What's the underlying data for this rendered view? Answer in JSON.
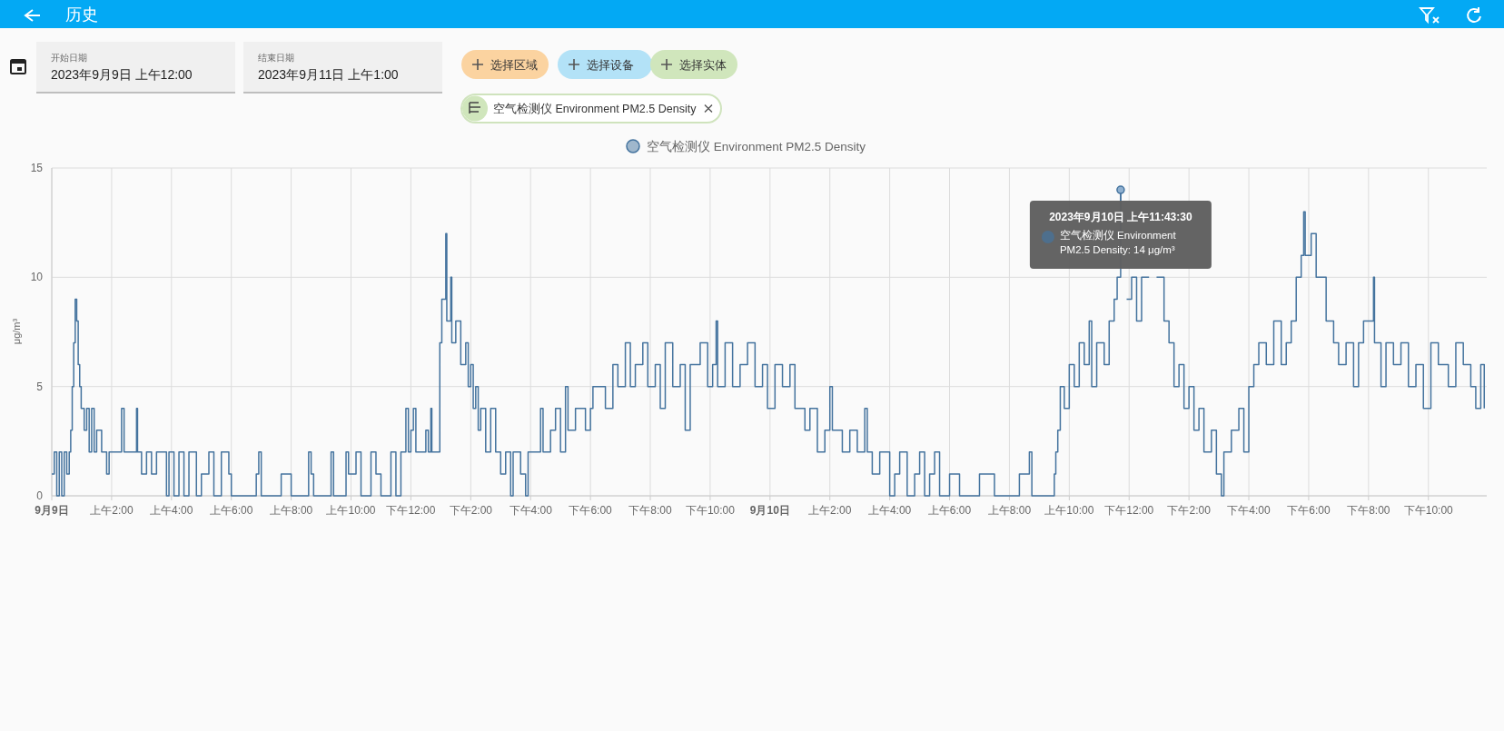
{
  "chart_data": {
    "type": "step",
    "title": "历史",
    "ylabel": "μg/m³",
    "grid": true,
    "legend": "top",
    "line_style": "solid",
    "xlim": [
      "2023-09-09T00:00",
      "2023-09-10T23:57"
    ],
    "ylim": [
      0,
      15
    ],
    "yticks": [
      0,
      5,
      10,
      15
    ],
    "xticks": [
      {
        "value": "2023-09-09T00:00",
        "label": "**9月9日**"
      },
      {
        "value": "2023-09-09T02:00",
        "label": "上午2:00"
      },
      {
        "value": "2023-09-09T04:00",
        "label": "上午4:00"
      },
      {
        "value": "2023-09-09T06:00",
        "label": "上午6:00"
      },
      {
        "value": "2023-09-09T08:00",
        "label": "上午8:00"
      },
      {
        "value": "2023-09-09T10:00",
        "label": "上午10:00"
      },
      {
        "value": "2023-09-09T12:00",
        "label": "下午12:00"
      },
      {
        "value": "2023-09-09T14:00",
        "label": "下午2:00"
      },
      {
        "value": "2023-09-09T16:00",
        "label": "下午4:00"
      },
      {
        "value": "2023-09-09T18:00",
        "label": "下午6:00"
      },
      {
        "value": "2023-09-09T20:00",
        "label": "下午8:00"
      },
      {
        "value": "2023-09-09T22:00",
        "label": "下午10:00"
      },
      {
        "value": "2023-09-10T00:00",
        "label": "**9月10日**"
      },
      {
        "value": "2023-09-10T02:00",
        "label": "上午2:00"
      },
      {
        "value": "2023-09-10T04:00",
        "label": "上午4:00"
      },
      {
        "value": "2023-09-10T06:00",
        "label": "上午6:00"
      },
      {
        "value": "2023-09-10T08:00",
        "label": "上午8:00"
      },
      {
        "value": "2023-09-10T10:00",
        "label": "上午10:00"
      },
      {
        "value": "2023-09-10T12:00",
        "label": "下午12:00"
      },
      {
        "value": "2023-09-10T14:00",
        "label": "下午2:00"
      },
      {
        "value": "2023-09-10T16:00",
        "label": "下午4:00"
      },
      {
        "value": "2023-09-10T18:00",
        "label": "下午6:00"
      },
      {
        "value": "2023-09-10T20:00",
        "label": "下午8:00"
      },
      {
        "value": "2023-09-10T22:00",
        "label": "下午10:00"
      }
    ],
    "annotations": [
      "开始日期",
      "2023年9月9日 上午12:00",
      "结束日期",
      "2023年9月11日 上午1:00",
      "选择区域",
      "选择设备",
      "选择实体",
      "空气检测仪 Environment PM2.5 Density",
      {
        "text": "2023年9月10日 上午11:43:30",
        "x": "2023-09-10T11:43",
        "y": 14
      },
      "空气检测仪 Environment PM2.5 Density: 14 μg/m³"
    ],
    "series": [
      {
        "name": "空气检测仪 Environment PM2.5 Density",
        "color": "#44739e",
        "x": [
          "2023-09-09T00:00",
          "2023-09-09T00:05",
          "2023-09-09T00:10",
          "2023-09-09T00:15",
          "2023-09-09T00:20",
          "2023-09-09T00:25",
          "2023-09-09T00:30",
          "2023-09-09T00:35",
          "2023-09-09T00:38",
          "2023-09-09T00:41",
          "2023-09-09T00:44",
          "2023-09-09T00:47",
          "2023-09-09T00:50",
          "2023-09-09T00:53",
          "2023-09-09T00:56",
          "2023-09-09T00:59",
          "2023-09-09T01:05",
          "2023-09-09T01:10",
          "2023-09-09T01:15",
          "2023-09-09T01:20",
          "2023-09-09T01:25",
          "2023-09-09T01:30",
          "2023-09-09T01:40",
          "2023-09-09T01:50",
          "2023-09-09T01:55",
          "2023-09-09T02:20",
          "2023-09-09T02:25",
          "2023-09-09T02:50",
          "2023-09-09T02:52",
          "2023-09-09T03:00",
          "2023-09-09T03:10",
          "2023-09-09T03:20",
          "2023-09-09T03:30",
          "2023-09-09T03:50",
          "2023-09-09T03:55",
          "2023-09-09T04:05",
          "2023-09-09T04:15",
          "2023-09-09T04:25",
          "2023-09-09T04:35",
          "2023-09-09T04:50",
          "2023-09-09T05:00",
          "2023-09-09T05:15",
          "2023-09-09T05:25",
          "2023-09-09T05:40",
          "2023-09-09T05:55",
          "2023-09-09T06:00",
          "2023-09-09T06:50",
          "2023-09-09T06:55",
          "2023-09-09T07:00",
          "2023-09-09T07:40",
          "2023-09-09T08:00",
          "2023-09-09T08:35",
          "2023-09-09T08:40",
          "2023-09-09T08:45",
          "2023-09-09T09:20",
          "2023-09-09T09:25",
          "2023-09-09T09:50",
          "2023-09-09T09:55",
          "2023-09-09T10:10",
          "2023-09-09T10:20",
          "2023-09-09T10:40",
          "2023-09-09T10:50",
          "2023-09-09T11:00",
          "2023-09-09T11:20",
          "2023-09-09T11:30",
          "2023-09-09T11:40",
          "2023-09-09T11:50",
          "2023-09-09T11:55",
          "2023-09-09T12:00",
          "2023-09-09T12:05",
          "2023-09-09T12:10",
          "2023-09-09T12:30",
          "2023-09-09T12:35",
          "2023-09-09T12:40",
          "2023-09-09T12:42",
          "2023-09-09T12:58",
          "2023-09-09T13:02",
          "2023-09-09T13:10",
          "2023-09-09T13:12",
          "2023-09-09T13:20",
          "2023-09-09T13:22",
          "2023-09-09T13:30",
          "2023-09-09T13:40",
          "2023-09-09T13:50",
          "2023-09-09T13:55",
          "2023-09-09T14:00",
          "2023-09-09T14:05",
          "2023-09-09T14:10",
          "2023-09-09T14:15",
          "2023-09-09T14:20",
          "2023-09-09T14:30",
          "2023-09-09T14:40",
          "2023-09-09T14:50",
          "2023-09-09T15:00",
          "2023-09-09T15:10",
          "2023-09-09T15:20",
          "2023-09-09T15:25",
          "2023-09-09T15:40",
          "2023-09-09T15:50",
          "2023-09-09T15:55",
          "2023-09-09T16:20",
          "2023-09-09T16:25",
          "2023-09-09T16:40",
          "2023-09-09T16:50",
          "2023-09-09T17:00",
          "2023-09-09T17:10",
          "2023-09-09T17:15",
          "2023-09-09T17:30",
          "2023-09-09T17:50",
          "2023-09-09T18:00",
          "2023-09-09T18:05",
          "2023-09-09T18:30",
          "2023-09-09T18:45",
          "2023-09-09T18:55",
          "2023-09-09T19:10",
          "2023-09-09T19:20",
          "2023-09-09T19:30",
          "2023-09-09T19:45",
          "2023-09-09T19:55",
          "2023-09-09T20:10",
          "2023-09-09T20:20",
          "2023-09-09T20:30",
          "2023-09-09T20:45",
          "2023-09-09T21:00",
          "2023-09-09T21:10",
          "2023-09-09T21:20",
          "2023-09-09T21:40",
          "2023-09-09T21:55",
          "2023-09-09T22:05",
          "2023-09-09T22:12",
          "2023-09-09T22:15",
          "2023-09-09T22:30",
          "2023-09-09T22:45",
          "2023-09-09T23:00",
          "2023-09-09T23:15",
          "2023-09-09T23:30",
          "2023-09-09T23:45",
          "2023-09-09T23:55",
          "2023-09-10T00:10",
          "2023-09-10T00:25",
          "2023-09-10T00:40",
          "2023-09-10T00:50",
          "2023-09-10T01:10",
          "2023-09-10T01:20",
          "2023-09-10T01:35",
          "2023-09-10T01:50",
          "2023-09-10T02:00",
          "2023-09-10T02:05",
          "2023-09-10T02:25",
          "2023-09-10T02:40",
          "2023-09-10T02:55",
          "2023-09-10T03:10",
          "2023-09-10T03:15",
          "2023-09-10T03:25",
          "2023-09-10T03:40",
          "2023-09-10T04:00",
          "2023-09-10T04:10",
          "2023-09-10T04:20",
          "2023-09-10T04:35",
          "2023-09-10T04:50",
          "2023-09-10T05:00",
          "2023-09-10T05:10",
          "2023-09-10T05:20",
          "2023-09-10T05:30",
          "2023-09-10T05:40",
          "2023-09-10T06:00",
          "2023-09-10T06:20",
          "2023-09-10T07:00",
          "2023-09-10T07:30",
          "2023-09-10T08:20",
          "2023-09-10T08:40",
          "2023-09-10T08:45",
          "2023-09-10T09:30",
          "2023-09-10T09:33",
          "2023-09-10T09:37",
          "2023-09-10T09:42",
          "2023-09-10T09:50",
          "2023-09-10T10:00",
          "2023-09-10T10:10",
          "2023-09-10T10:20",
          "2023-09-10T10:30",
          "2023-09-10T10:40",
          "2023-09-10T10:45",
          "2023-09-10T10:55",
          "2023-09-10T11:10",
          "2023-09-10T11:20",
          "2023-09-10T11:30",
          "2023-09-10T11:36",
          "2023-09-10T11:43",
          "2023-09-10T11:45",
          "2023-09-10T11:55",
          "2023-09-10T12:05",
          "2023-09-10T12:15",
          "2023-09-10T12:25",
          "2023-09-10T12:40",
          "2023-09-10T12:55",
          "2023-09-10T13:10",
          "2023-09-10T13:20",
          "2023-09-10T13:30",
          "2023-09-10T13:40",
          "2023-09-10T13:50",
          "2023-09-10T14:00",
          "2023-09-10T14:10",
          "2023-09-10T14:20",
          "2023-09-10T14:30",
          "2023-09-10T14:45",
          "2023-09-10T14:55",
          "2023-09-10T15:05",
          "2023-09-10T15:10",
          "2023-09-10T15:25",
          "2023-09-10T15:40",
          "2023-09-10T15:50",
          "2023-09-10T16:00",
          "2023-09-10T16:10",
          "2023-09-10T16:20",
          "2023-09-10T16:35",
          "2023-09-10T16:50",
          "2023-09-10T17:05",
          "2023-09-10T17:15",
          "2023-09-10T17:25",
          "2023-09-10T17:35",
          "2023-09-10T17:45",
          "2023-09-10T17:50",
          "2023-09-10T17:53",
          "2023-09-10T18:05",
          "2023-09-10T18:15",
          "2023-09-10T18:35",
          "2023-09-10T18:50",
          "2023-09-10T19:00",
          "2023-09-10T19:15",
          "2023-09-10T19:30",
          "2023-09-10T19:40",
          "2023-09-10T19:50",
          "2023-09-10T20:10",
          "2023-09-10T20:12",
          "2023-09-10T20:25",
          "2023-09-10T20:35",
          "2023-09-10T20:50",
          "2023-09-10T21:05",
          "2023-09-10T21:20",
          "2023-09-10T21:35",
          "2023-09-10T21:50",
          "2023-09-10T22:05",
          "2023-09-10T22:20",
          "2023-09-10T22:40",
          "2023-09-10T22:55",
          "2023-09-10T23:10",
          "2023-09-10T23:25",
          "2023-09-10T23:35",
          "2023-09-10T23:45",
          "2023-09-10T23:52"
        ],
        "values": [
          1,
          2,
          0,
          2,
          0,
          2,
          1,
          2,
          3,
          5,
          7,
          9,
          8,
          6,
          5,
          4,
          3,
          4,
          2,
          4,
          2,
          3,
          2,
          1,
          2,
          4,
          2,
          4,
          2,
          1,
          2,
          1,
          2,
          0,
          2,
          0,
          2,
          0,
          2,
          0,
          1,
          2,
          0,
          2,
          1,
          0,
          1,
          2,
          0,
          1,
          0,
          2,
          1,
          0,
          2,
          0,
          2,
          1,
          2,
          0,
          2,
          1,
          0,
          2,
          0,
          2,
          4,
          2,
          3,
          4,
          2,
          3,
          2,
          4,
          2,
          7,
          9,
          12,
          8,
          10,
          7,
          8,
          6,
          7,
          5,
          6,
          4,
          5,
          3,
          4,
          2,
          4,
          2,
          1,
          2,
          0,
          2,
          1,
          0,
          2,
          4,
          2,
          3,
          4,
          2,
          5,
          3,
          4,
          3,
          4,
          5,
          4,
          6,
          5,
          7,
          5,
          6,
          7,
          5,
          6,
          4,
          7,
          5,
          6,
          3,
          6,
          7,
          5,
          6,
          8,
          5,
          7,
          5,
          6,
          7,
          5,
          6,
          4,
          6,
          5,
          6,
          4,
          3,
          4,
          2,
          3,
          5,
          3,
          2,
          3,
          2,
          4,
          2,
          1,
          2,
          0,
          1,
          2,
          0,
          1,
          2,
          0,
          1,
          2,
          0,
          1,
          0,
          1,
          0,
          1,
          2,
          0,
          1,
          2,
          3,
          5,
          4,
          6,
          5,
          7,
          6,
          8,
          5,
          7,
          6,
          8,
          9,
          10,
          14,
          null,
          9,
          10,
          8,
          10,
          null,
          10,
          8,
          7,
          5,
          6,
          4,
          5,
          3,
          4,
          2,
          3,
          1,
          0,
          2,
          3,
          4,
          2,
          5,
          6,
          7,
          6,
          8,
          6,
          7,
          8,
          10,
          11,
          13,
          11,
          12,
          10,
          8,
          7,
          6,
          7,
          5,
          7,
          8,
          10,
          7,
          5,
          7,
          6,
          7,
          5,
          6,
          4,
          7,
          6,
          5,
          7,
          6,
          5,
          4,
          6,
          4
        ]
      }
    ]
  }
}
